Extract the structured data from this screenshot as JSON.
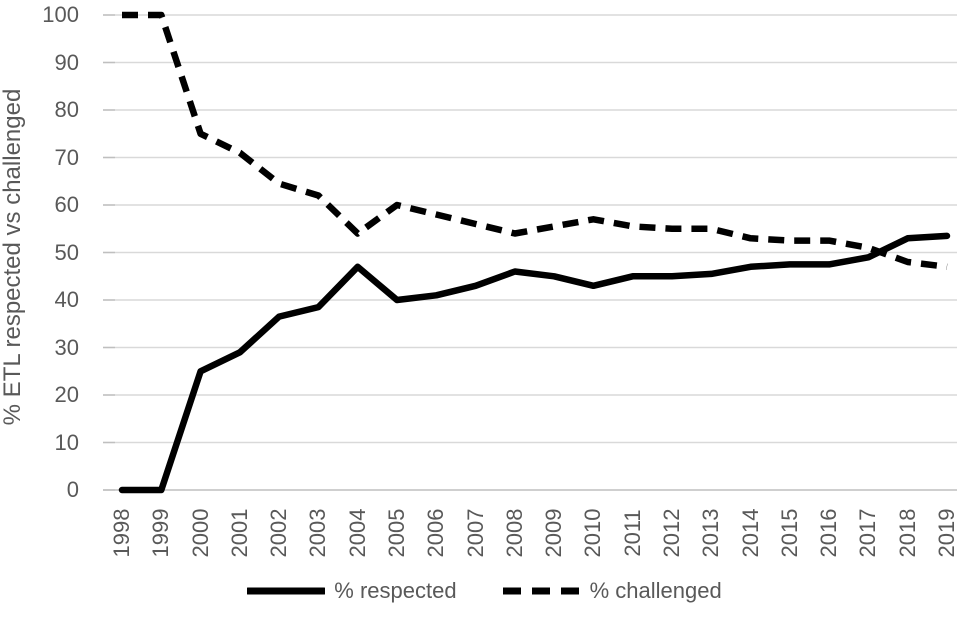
{
  "chart_data": {
    "type": "line",
    "title": "",
    "ylabel": "% ETL respected vs challenged",
    "xlabel": "",
    "x": [
      "1998",
      "1999",
      "2000",
      "2001",
      "2002",
      "2003",
      "2004",
      "2005",
      "2006",
      "2007",
      "2008",
      "2009",
      "2010",
      "2011",
      "2012",
      "2013",
      "2014",
      "2015",
      "2016",
      "2017",
      "2018",
      "2019"
    ],
    "series": [
      {
        "name": "% respected",
        "style": "solid",
        "values": [
          0,
          0,
          25,
          29,
          36.5,
          38.5,
          47,
          40,
          41,
          43,
          46,
          45,
          43,
          45,
          45,
          45.5,
          47,
          47.5,
          47.5,
          49,
          53,
          53.5
        ]
      },
      {
        "name": "% challenged",
        "style": "dashed",
        "values": [
          100,
          100,
          75,
          71,
          64.5,
          62,
          54,
          60,
          58,
          56,
          54,
          55.5,
          57,
          55.5,
          55,
          55,
          53,
          52.5,
          52.5,
          51,
          48,
          47
        ]
      }
    ],
    "ylim": [
      0,
      100
    ],
    "y_ticks": [
      0,
      10,
      20,
      30,
      40,
      50,
      60,
      70,
      80,
      90,
      100
    ],
    "grid": "horizontal",
    "legend_position": "bottom",
    "colors": {
      "line": "#000000",
      "tick_text": "#595959",
      "axis_title_text": "#595959",
      "legend_text": "#595959",
      "gridline": "#D9D9D9",
      "tick_mark": "#BFBFBF",
      "background": "#FFFFFF"
    }
  }
}
